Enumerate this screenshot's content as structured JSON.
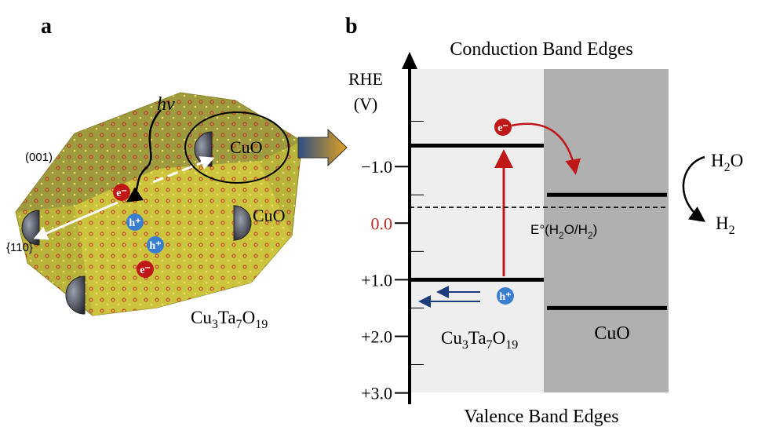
{
  "panel_a": {
    "label": "a",
    "photon": "hv",
    "cocatalyst_1": "CuO",
    "cocatalyst_2": "CuO",
    "facet_1": "(001)",
    "facet_2": "{110}",
    "electron_1": "e⁻",
    "electron_2": "e⁻",
    "hole_1": "h⁺",
    "hole_2": "h⁺",
    "formula": [
      "Cu",
      "3",
      "Ta",
      "7",
      "O",
      "19"
    ]
  },
  "panel_b": {
    "label": "b",
    "top_label": "Conduction Band Edges",
    "bottom_label": "Valence Band Edges",
    "axis_title": [
      "RHE",
      "(V)"
    ],
    "ylim": [
      -3.0,
      3.2
    ],
    "yticks": [
      {
        "value": -1,
        "label": "−1.0"
      },
      {
        "value": 0,
        "label": "0.0"
      },
      {
        "value": 1,
        "label": "+1.0"
      },
      {
        "value": 2,
        "label": "+2.0"
      },
      {
        "value": 3,
        "label": "+3.0"
      }
    ],
    "minor_ticks": [
      -1.8,
      -0.5,
      0.5,
      1.5,
      2.5
    ],
    "bands": [
      {
        "conduction": -1.37,
        "valence": 1.0
      },
      {
        "conduction": -0.5,
        "valence": 1.5
      }
    ],
    "redox_level": -0.28,
    "redox_label": [
      "E°(H",
      "2",
      "O/H",
      "2",
      ")"
    ],
    "electron": "e⁻",
    "hole": "h⁺",
    "material_1": [
      "Cu",
      "3",
      "Ta",
      "7",
      "O",
      "19"
    ],
    "material_2": "CuO",
    "reactant": [
      "H",
      "2",
      "O"
    ],
    "product": [
      "H",
      "2"
    ]
  }
}
